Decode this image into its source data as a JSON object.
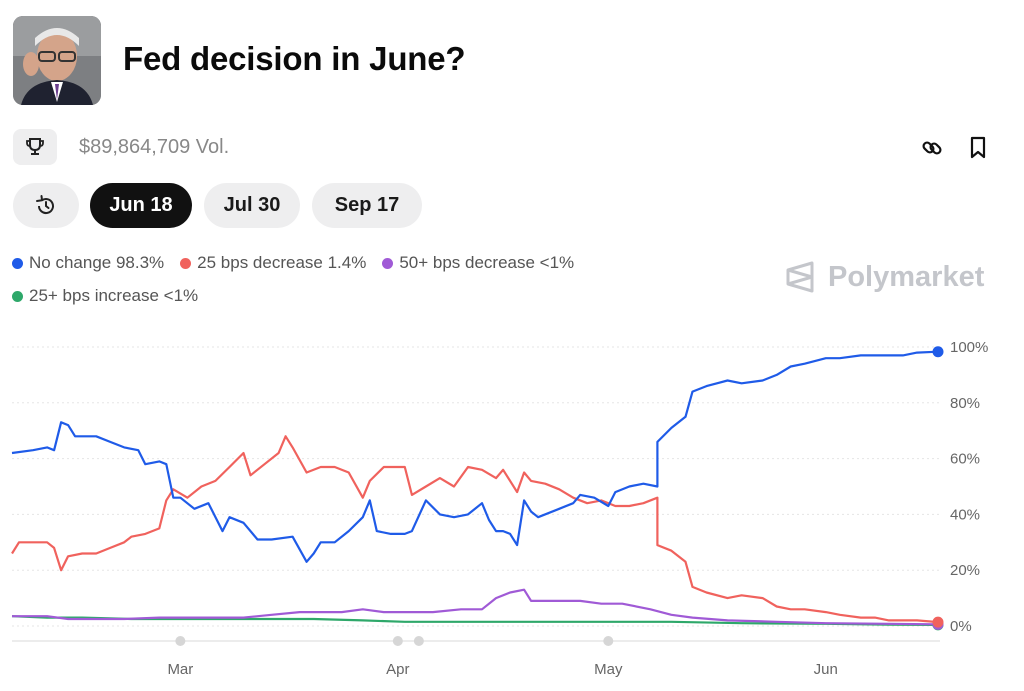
{
  "market": {
    "title": "Fed decision in June?",
    "volume": "$89,864,709 Vol."
  },
  "icons": {
    "trophy": "trophy-icon",
    "link": "link-icon",
    "bookmark": "bookmark-icon",
    "history": "history-icon",
    "brand": "polymarket-logo"
  },
  "date_tabs": [
    {
      "label": "Jun 18",
      "active": true
    },
    {
      "label": "Jul 30",
      "active": false
    },
    {
      "label": "Sep 17",
      "active": false
    }
  ],
  "brand": {
    "name": "Polymarket"
  },
  "colors": {
    "no_change": "#1f5be8",
    "decrease_25": "#f0625d",
    "decrease_50": "#a05ad6",
    "increase_25": "#2ea86a",
    "grid": "#e5e5e5"
  },
  "chart_data": {
    "type": "line",
    "title": "",
    "xlabel": "",
    "ylabel": "",
    "x_range": [
      "2025-02-05",
      "2025-06-17"
    ],
    "x_ticks": [
      {
        "label": "Mar",
        "date": "2025-03-01"
      },
      {
        "label": "Apr",
        "date": "2025-04-01"
      },
      {
        "label": "May",
        "date": "2025-05-01"
      },
      {
        "label": "Jun",
        "date": "2025-06-01"
      }
    ],
    "y_ticks": [
      0,
      20,
      40,
      60,
      80,
      100
    ],
    "y_tick_labels": [
      "0%",
      "20%",
      "40%",
      "60%",
      "80%",
      "100%"
    ],
    "ylim": [
      0,
      100
    ],
    "grid": true,
    "legend_position": "top-left",
    "series": [
      {
        "name": "No change",
        "legend_label": "No change 98.3%",
        "color_key": "no_change",
        "points": [
          [
            "2025-02-05",
            62
          ],
          [
            "2025-02-08",
            63
          ],
          [
            "2025-02-10",
            64
          ],
          [
            "2025-02-11",
            63
          ],
          [
            "2025-02-12",
            73
          ],
          [
            "2025-02-13",
            72
          ],
          [
            "2025-02-14",
            68
          ],
          [
            "2025-02-17",
            68
          ],
          [
            "2025-02-19",
            66
          ],
          [
            "2025-02-21",
            64
          ],
          [
            "2025-02-23",
            63
          ],
          [
            "2025-02-24",
            58
          ],
          [
            "2025-02-26",
            59
          ],
          [
            "2025-02-27",
            58
          ],
          [
            "2025-02-28",
            46
          ],
          [
            "2025-03-01",
            46
          ],
          [
            "2025-03-03",
            42
          ],
          [
            "2025-03-05",
            44
          ],
          [
            "2025-03-07",
            34
          ],
          [
            "2025-03-08",
            39
          ],
          [
            "2025-03-10",
            37
          ],
          [
            "2025-03-12",
            31
          ],
          [
            "2025-03-14",
            31
          ],
          [
            "2025-03-17",
            32
          ],
          [
            "2025-03-19",
            23
          ],
          [
            "2025-03-20",
            26
          ],
          [
            "2025-03-21",
            30
          ],
          [
            "2025-03-23",
            30
          ],
          [
            "2025-03-25",
            34
          ],
          [
            "2025-03-27",
            39
          ],
          [
            "2025-03-28",
            45
          ],
          [
            "2025-03-29",
            34
          ],
          [
            "2025-03-31",
            33
          ],
          [
            "2025-04-02",
            33
          ],
          [
            "2025-04-03",
            34
          ],
          [
            "2025-04-05",
            45
          ],
          [
            "2025-04-07",
            40
          ],
          [
            "2025-04-09",
            39
          ],
          [
            "2025-04-11",
            40
          ],
          [
            "2025-04-13",
            44
          ],
          [
            "2025-04-14",
            38
          ],
          [
            "2025-04-15",
            34
          ],
          [
            "2025-04-16",
            34
          ],
          [
            "2025-04-17",
            33
          ],
          [
            "2025-04-18",
            29
          ],
          [
            "2025-04-19",
            45
          ],
          [
            "2025-04-20",
            41
          ],
          [
            "2025-04-21",
            39
          ],
          [
            "2025-04-24",
            42
          ],
          [
            "2025-04-26",
            44
          ],
          [
            "2025-04-27",
            47
          ],
          [
            "2025-04-29",
            46
          ],
          [
            "2025-05-01",
            43
          ],
          [
            "2025-05-02",
            48
          ],
          [
            "2025-05-04",
            50
          ],
          [
            "2025-05-06",
            51
          ],
          [
            "2025-05-08",
            50
          ],
          [
            "2025-05-08",
            66
          ],
          [
            "2025-05-10",
            71
          ],
          [
            "2025-05-12",
            75
          ],
          [
            "2025-05-13",
            84
          ],
          [
            "2025-05-15",
            86
          ],
          [
            "2025-05-18",
            88
          ],
          [
            "2025-05-20",
            87
          ],
          [
            "2025-05-23",
            88
          ],
          [
            "2025-05-25",
            90
          ],
          [
            "2025-05-27",
            93
          ],
          [
            "2025-05-29",
            94
          ],
          [
            "2025-06-01",
            96
          ],
          [
            "2025-06-03",
            96
          ],
          [
            "2025-06-06",
            97
          ],
          [
            "2025-06-08",
            97
          ],
          [
            "2025-06-10",
            97
          ],
          [
            "2025-06-12",
            97
          ],
          [
            "2025-06-14",
            98
          ],
          [
            "2025-06-17",
            98.3
          ]
        ]
      },
      {
        "name": "25 bps decrease",
        "legend_label": "25 bps decrease 1.4%",
        "color_key": "decrease_25",
        "points": [
          [
            "2025-02-05",
            26
          ],
          [
            "2025-02-06",
            30
          ],
          [
            "2025-02-08",
            30
          ],
          [
            "2025-02-10",
            30
          ],
          [
            "2025-02-11",
            28
          ],
          [
            "2025-02-12",
            20
          ],
          [
            "2025-02-13",
            25
          ],
          [
            "2025-02-15",
            26
          ],
          [
            "2025-02-17",
            26
          ],
          [
            "2025-02-19",
            28
          ],
          [
            "2025-02-21",
            30
          ],
          [
            "2025-02-22",
            32
          ],
          [
            "2025-02-24",
            33
          ],
          [
            "2025-02-26",
            35
          ],
          [
            "2025-02-27",
            45
          ],
          [
            "2025-02-28",
            49
          ],
          [
            "2025-03-02",
            46
          ],
          [
            "2025-03-04",
            50
          ],
          [
            "2025-03-06",
            52
          ],
          [
            "2025-03-08",
            57
          ],
          [
            "2025-03-10",
            62
          ],
          [
            "2025-03-11",
            54
          ],
          [
            "2025-03-13",
            58
          ],
          [
            "2025-03-15",
            62
          ],
          [
            "2025-03-16",
            68
          ],
          [
            "2025-03-17",
            64
          ],
          [
            "2025-03-19",
            55
          ],
          [
            "2025-03-21",
            57
          ],
          [
            "2025-03-23",
            57
          ],
          [
            "2025-03-25",
            55
          ],
          [
            "2025-03-27",
            46
          ],
          [
            "2025-03-28",
            52
          ],
          [
            "2025-03-30",
            57
          ],
          [
            "2025-04-01",
            57
          ],
          [
            "2025-04-02",
            57
          ],
          [
            "2025-04-03",
            47
          ],
          [
            "2025-04-05",
            50
          ],
          [
            "2025-04-07",
            53
          ],
          [
            "2025-04-09",
            50
          ],
          [
            "2025-04-11",
            57
          ],
          [
            "2025-04-13",
            56
          ],
          [
            "2025-04-15",
            53
          ],
          [
            "2025-04-16",
            56
          ],
          [
            "2025-04-18",
            48
          ],
          [
            "2025-04-19",
            55
          ],
          [
            "2025-04-20",
            52
          ],
          [
            "2025-04-22",
            51
          ],
          [
            "2025-04-24",
            49
          ],
          [
            "2025-04-26",
            46
          ],
          [
            "2025-04-28",
            44
          ],
          [
            "2025-04-30",
            45
          ],
          [
            "2025-05-02",
            43
          ],
          [
            "2025-05-04",
            43
          ],
          [
            "2025-05-06",
            44
          ],
          [
            "2025-05-08",
            46
          ],
          [
            "2025-05-08",
            29
          ],
          [
            "2025-05-10",
            27
          ],
          [
            "2025-05-12",
            23
          ],
          [
            "2025-05-13",
            14
          ],
          [
            "2025-05-15",
            12
          ],
          [
            "2025-05-18",
            10
          ],
          [
            "2025-05-20",
            11
          ],
          [
            "2025-05-23",
            10
          ],
          [
            "2025-05-25",
            7
          ],
          [
            "2025-05-27",
            6
          ],
          [
            "2025-05-29",
            6
          ],
          [
            "2025-06-01",
            5
          ],
          [
            "2025-06-03",
            4
          ],
          [
            "2025-06-06",
            3
          ],
          [
            "2025-06-08",
            3
          ],
          [
            "2025-06-10",
            2
          ],
          [
            "2025-06-12",
            2
          ],
          [
            "2025-06-14",
            2
          ],
          [
            "2025-06-17",
            1.4
          ]
        ]
      },
      {
        "name": "50+ bps decrease",
        "legend_label": "50+ bps decrease <1%",
        "color_key": "decrease_50",
        "points": [
          [
            "2025-02-05",
            3.5
          ],
          [
            "2025-02-10",
            3.5
          ],
          [
            "2025-02-13",
            2.5
          ],
          [
            "2025-02-17",
            2.5
          ],
          [
            "2025-02-21",
            2.5
          ],
          [
            "2025-02-26",
            3
          ],
          [
            "2025-03-03",
            3
          ],
          [
            "2025-03-10",
            3
          ],
          [
            "2025-03-14",
            4
          ],
          [
            "2025-03-18",
            5
          ],
          [
            "2025-03-24",
            5
          ],
          [
            "2025-03-27",
            6
          ],
          [
            "2025-03-30",
            5
          ],
          [
            "2025-04-02",
            5
          ],
          [
            "2025-04-06",
            5
          ],
          [
            "2025-04-10",
            6
          ],
          [
            "2025-04-13",
            6
          ],
          [
            "2025-04-15",
            10
          ],
          [
            "2025-04-17",
            12
          ],
          [
            "2025-04-19",
            13
          ],
          [
            "2025-04-20",
            9
          ],
          [
            "2025-04-23",
            9
          ],
          [
            "2025-04-27",
            9
          ],
          [
            "2025-04-30",
            8
          ],
          [
            "2025-05-03",
            8
          ],
          [
            "2025-05-07",
            6
          ],
          [
            "2025-05-10",
            4
          ],
          [
            "2025-05-13",
            3
          ],
          [
            "2025-05-18",
            2
          ],
          [
            "2025-05-25",
            1.5
          ],
          [
            "2025-06-01",
            1
          ],
          [
            "2025-06-10",
            0.8
          ],
          [
            "2025-06-17",
            0.6
          ]
        ]
      },
      {
        "name": "25+ bps increase",
        "legend_label": "25+ bps increase <1%",
        "color_key": "increase_25",
        "points": [
          [
            "2025-02-05",
            3.5
          ],
          [
            "2025-02-10",
            3
          ],
          [
            "2025-02-15",
            3
          ],
          [
            "2025-02-22",
            2.5
          ],
          [
            "2025-03-01",
            2.5
          ],
          [
            "2025-03-10",
            2.5
          ],
          [
            "2025-03-20",
            2.5
          ],
          [
            "2025-03-27",
            2
          ],
          [
            "2025-04-02",
            1.5
          ],
          [
            "2025-04-10",
            1.5
          ],
          [
            "2025-04-15",
            1.5
          ],
          [
            "2025-04-20",
            1.5
          ],
          [
            "2025-04-27",
            1.5
          ],
          [
            "2025-05-04",
            1.5
          ],
          [
            "2025-05-10",
            1.5
          ],
          [
            "2025-05-20",
            1
          ],
          [
            "2025-06-01",
            0.8
          ],
          [
            "2025-06-10",
            0.5
          ],
          [
            "2025-06-17",
            0.4
          ]
        ]
      }
    ]
  }
}
